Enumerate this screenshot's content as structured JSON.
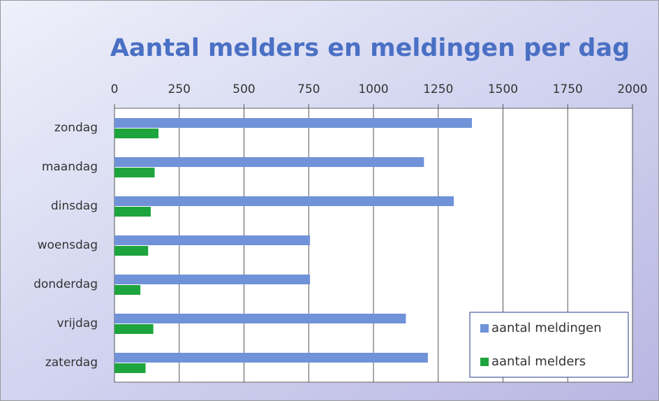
{
  "chart_data": {
    "type": "bar",
    "orientation": "horizontal",
    "title": "Aantal melders  en meldingen per dag",
    "categories": [
      "zondag",
      "maandag",
      "dinsdag",
      "woensdag",
      "donderdag",
      "vrijdag",
      "zaterdag"
    ],
    "series": [
      {
        "name": "aantal meldingen",
        "color": "#7092d8",
        "values": [
          1380,
          1195,
          1310,
          755,
          755,
          1125,
          1210
        ]
      },
      {
        "name": "aantal melders",
        "color": "#1ea43c",
        "values": [
          170,
          155,
          140,
          130,
          100,
          150,
          120
        ]
      }
    ],
    "xlim": [
      0,
      2000
    ],
    "xticks": [
      0,
      250,
      500,
      750,
      1000,
      1250,
      1500,
      1750,
      2000
    ],
    "grid": true,
    "legend": "lower right"
  }
}
